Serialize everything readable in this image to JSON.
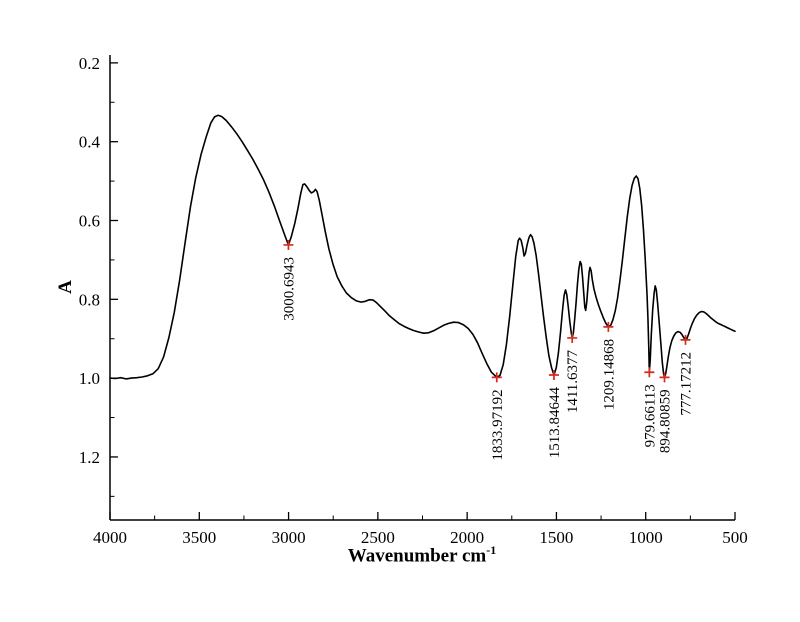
{
  "chart_data": {
    "type": "line",
    "title": "",
    "ylabel": "A",
    "xlabel_base": "Wavenumber cm",
    "xlabel_sup": "-1",
    "x_ticks": [
      "4000",
      "3500",
      "3000",
      "2500",
      "2000",
      "1500",
      "1000",
      "500"
    ],
    "y_ticks": [
      "0.2",
      "0.4",
      "0.6",
      "0.8",
      "1.0",
      "1.2"
    ],
    "x_range": [
      4000,
      500
    ],
    "y_range": [
      0.18,
      1.36
    ],
    "y_inverted": true,
    "x_axis_reversed": true,
    "grid": false,
    "legend": "none",
    "line_color": "#000000",
    "marker_color": "#d42b1c",
    "peaks": [
      {
        "label": "3000.6943",
        "x": 3000.69,
        "y": 0.662
      },
      {
        "label": "1833.97192",
        "x": 1833.97,
        "y": 0.998
      },
      {
        "label": "1513.84644",
        "x": 1513.85,
        "y": 0.992
      },
      {
        "label": "1411.6377",
        "x": 1411.64,
        "y": 0.898
      },
      {
        "label": "1209.14868",
        "x": 1209.15,
        "y": 0.87
      },
      {
        "label": "979.66113",
        "x": 979.66,
        "y": 0.985
      },
      {
        "label": "894.80859",
        "x": 894.81,
        "y": 0.998
      },
      {
        "label": "777.17212",
        "x": 777.17,
        "y": 0.903
      }
    ],
    "points": [
      [
        4000,
        1.0
      ],
      [
        3970,
        1.001
      ],
      [
        3940,
        0.999
      ],
      [
        3910,
        1.002
      ],
      [
        3880,
        1.0
      ],
      [
        3850,
        0.999
      ],
      [
        3820,
        0.997
      ],
      [
        3790,
        0.994
      ],
      [
        3760,
        0.989
      ],
      [
        3730,
        0.976
      ],
      [
        3700,
        0.946
      ],
      [
        3670,
        0.897
      ],
      [
        3640,
        0.833
      ],
      [
        3610,
        0.752
      ],
      [
        3580,
        0.658
      ],
      [
        3550,
        0.566
      ],
      [
        3520,
        0.492
      ],
      [
        3490,
        0.432
      ],
      [
        3460,
        0.386
      ],
      [
        3435,
        0.352
      ],
      [
        3415,
        0.337
      ],
      [
        3395,
        0.333
      ],
      [
        3375,
        0.336
      ],
      [
        3350,
        0.346
      ],
      [
        3320,
        0.362
      ],
      [
        3290,
        0.38
      ],
      [
        3260,
        0.4
      ],
      [
        3230,
        0.422
      ],
      [
        3200,
        0.445
      ],
      [
        3170,
        0.47
      ],
      [
        3140,
        0.497
      ],
      [
        3110,
        0.528
      ],
      [
        3080,
        0.563
      ],
      [
        3050,
        0.601
      ],
      [
        3020,
        0.639
      ],
      [
        3000.7,
        0.662
      ],
      [
        2985,
        0.641
      ],
      [
        2965,
        0.607
      ],
      [
        2948,
        0.57
      ],
      [
        2932,
        0.532
      ],
      [
        2920,
        0.509
      ],
      [
        2910,
        0.507
      ],
      [
        2898,
        0.514
      ],
      [
        2884,
        0.524
      ],
      [
        2872,
        0.53
      ],
      [
        2860,
        0.527
      ],
      [
        2850,
        0.521
      ],
      [
        2840,
        0.527
      ],
      [
        2828,
        0.549
      ],
      [
        2812,
        0.586
      ],
      [
        2794,
        0.63
      ],
      [
        2774,
        0.672
      ],
      [
        2752,
        0.71
      ],
      [
        2728,
        0.742
      ],
      [
        2702,
        0.766
      ],
      [
        2676,
        0.784
      ],
      [
        2648,
        0.796
      ],
      [
        2620,
        0.804
      ],
      [
        2594,
        0.807
      ],
      [
        2570,
        0.805
      ],
      [
        2548,
        0.801
      ],
      [
        2526,
        0.802
      ],
      [
        2506,
        0.809
      ],
      [
        2484,
        0.819
      ],
      [
        2460,
        0.83
      ],
      [
        2434,
        0.842
      ],
      [
        2408,
        0.852
      ],
      [
        2382,
        0.861
      ],
      [
        2356,
        0.868
      ],
      [
        2328,
        0.874
      ],
      [
        2300,
        0.879
      ],
      [
        2272,
        0.883
      ],
      [
        2244,
        0.886
      ],
      [
        2216,
        0.885
      ],
      [
        2188,
        0.88
      ],
      [
        2160,
        0.873
      ],
      [
        2132,
        0.866
      ],
      [
        2104,
        0.861
      ],
      [
        2076,
        0.858
      ],
      [
        2048,
        0.859
      ],
      [
        2020,
        0.865
      ],
      [
        1994,
        0.874
      ],
      [
        1968,
        0.889
      ],
      [
        1942,
        0.91
      ],
      [
        1916,
        0.937
      ],
      [
        1890,
        0.963
      ],
      [
        1864,
        0.985
      ],
      [
        1834,
        0.998
      ],
      [
        1816,
        0.993
      ],
      [
        1798,
        0.966
      ],
      [
        1780,
        0.915
      ],
      [
        1762,
        0.845
      ],
      [
        1744,
        0.762
      ],
      [
        1728,
        0.692
      ],
      [
        1714,
        0.651
      ],
      [
        1706,
        0.645
      ],
      [
        1698,
        0.65
      ],
      [
        1689,
        0.668
      ],
      [
        1681,
        0.69
      ],
      [
        1673,
        0.683
      ],
      [
        1664,
        0.662
      ],
      [
        1654,
        0.644
      ],
      [
        1645,
        0.636
      ],
      [
        1636,
        0.641
      ],
      [
        1626,
        0.657
      ],
      [
        1614,
        0.688
      ],
      [
        1601,
        0.733
      ],
      [
        1587,
        0.787
      ],
      [
        1572,
        0.845
      ],
      [
        1557,
        0.898
      ],
      [
        1542,
        0.943
      ],
      [
        1527,
        0.974
      ],
      [
        1513.8,
        0.992
      ],
      [
        1501,
        0.973
      ],
      [
        1489,
        0.936
      ],
      [
        1477,
        0.884
      ],
      [
        1466,
        0.828
      ],
      [
        1457,
        0.79
      ],
      [
        1449,
        0.776
      ],
      [
        1442,
        0.788
      ],
      [
        1434,
        0.818
      ],
      [
        1425,
        0.856
      ],
      [
        1417,
        0.886
      ],
      [
        1411.6,
        0.898
      ],
      [
        1405,
        0.884
      ],
      [
        1398,
        0.853
      ],
      [
        1390,
        0.808
      ],
      [
        1382,
        0.76
      ],
      [
        1374,
        0.722
      ],
      [
        1367,
        0.704
      ],
      [
        1361,
        0.711
      ],
      [
        1354,
        0.742
      ],
      [
        1347,
        0.786
      ],
      [
        1341,
        0.82
      ],
      [
        1336,
        0.828
      ],
      [
        1330,
        0.806
      ],
      [
        1323,
        0.766
      ],
      [
        1317,
        0.731
      ],
      [
        1312,
        0.719
      ],
      [
        1306,
        0.727
      ],
      [
        1299,
        0.75
      ],
      [
        1290,
        0.773
      ],
      [
        1279,
        0.793
      ],
      [
        1266,
        0.812
      ],
      [
        1252,
        0.83
      ],
      [
        1238,
        0.846
      ],
      [
        1224,
        0.86
      ],
      [
        1209.1,
        0.87
      ],
      [
        1196,
        0.866
      ],
      [
        1184,
        0.852
      ],
      [
        1171,
        0.83
      ],
      [
        1158,
        0.798
      ],
      [
        1145,
        0.755
      ],
      [
        1131,
        0.703
      ],
      [
        1117,
        0.646
      ],
      [
        1103,
        0.59
      ],
      [
        1089,
        0.543
      ],
      [
        1076,
        0.511
      ],
      [
        1064,
        0.493
      ],
      [
        1053,
        0.487
      ],
      [
        1043,
        0.494
      ],
      [
        1033,
        0.519
      ],
      [
        1023,
        0.561
      ],
      [
        1013,
        0.621
      ],
      [
        1003,
        0.697
      ],
      [
        993,
        0.786
      ],
      [
        988,
        0.845
      ],
      [
        983,
        0.925
      ],
      [
        979.7,
        0.985
      ],
      [
        975,
        0.955
      ],
      [
        969,
        0.89
      ],
      [
        961,
        0.826
      ],
      [
        953,
        0.785
      ],
      [
        947,
        0.766
      ],
      [
        941,
        0.776
      ],
      [
        933,
        0.812
      ],
      [
        924,
        0.862
      ],
      [
        915,
        0.914
      ],
      [
        907,
        0.96
      ],
      [
        900,
        0.989
      ],
      [
        894.8,
        0.998
      ],
      [
        888,
        0.989
      ],
      [
        881,
        0.968
      ],
      [
        873,
        0.944
      ],
      [
        864,
        0.922
      ],
      [
        854,
        0.905
      ],
      [
        843,
        0.893
      ],
      [
        831,
        0.885
      ],
      [
        819,
        0.882
      ],
      [
        807,
        0.884
      ],
      [
        796,
        0.89
      ],
      [
        786,
        0.898
      ],
      [
        777.2,
        0.903
      ],
      [
        769,
        0.899
      ],
      [
        760,
        0.888
      ],
      [
        750,
        0.874
      ],
      [
        739,
        0.861
      ],
      [
        727,
        0.849
      ],
      [
        714,
        0.84
      ],
      [
        701,
        0.834
      ],
      [
        688,
        0.831
      ],
      [
        675,
        0.832
      ],
      [
        662,
        0.836
      ],
      [
        649,
        0.841
      ],
      [
        636,
        0.847
      ],
      [
        622,
        0.852
      ],
      [
        608,
        0.857
      ],
      [
        594,
        0.861
      ],
      [
        580,
        0.864
      ],
      [
        566,
        0.867
      ],
      [
        552,
        0.87
      ],
      [
        538,
        0.873
      ],
      [
        524,
        0.876
      ],
      [
        510,
        0.879
      ],
      [
        500,
        0.881
      ]
    ]
  }
}
